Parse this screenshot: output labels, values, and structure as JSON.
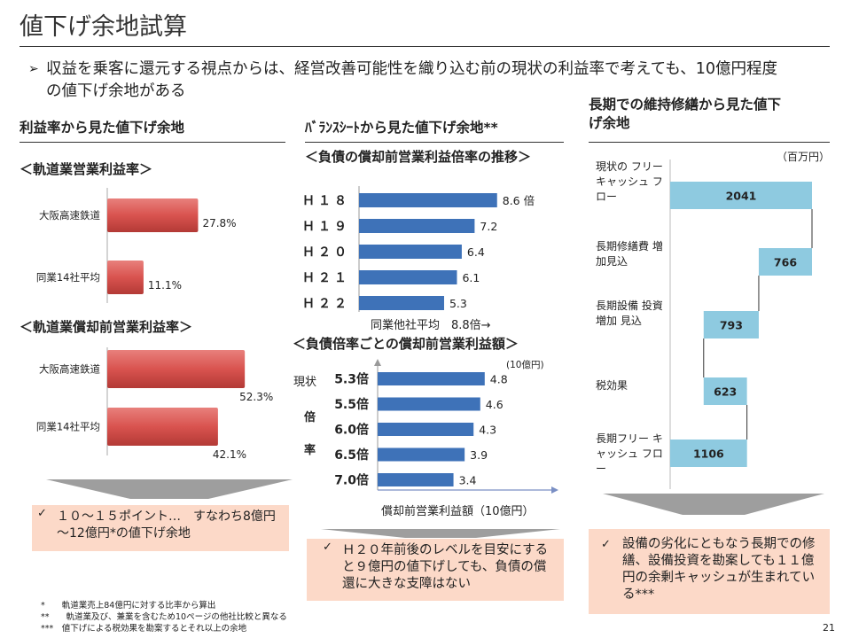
{
  "page": {
    "title": "値下げ余地試算",
    "lead": "収益を乗客に還元する視点からは、経営改善可能性を織り込む前の現状の利益率で考えても、10億円程度の値下げ余地がある",
    "page_number": "21"
  },
  "col1": {
    "heading": "利益率から見た値下げ余地",
    "chart1_title": "＜軌道業営業利益率＞",
    "chart2_title": "＜軌道業償却前営業利益率＞",
    "conclusion": "１０～１５ポイント…　すなわち8億円～12億円*の値下げ余地"
  },
  "col2": {
    "heading": "ﾊﾞﾗﾝｽｼｰﾄから見た値下げ余地**",
    "chart3_title": "＜負債の償却前営業利益倍率の推移＞",
    "chart3_note": "同業他社平均　8.8倍→",
    "chart4_title": "＜負債倍率ごとの償却前営業利益額＞",
    "chart4_unit": "(10億円)",
    "chart4_current": "現状",
    "chart4_ylabel_1": "倍",
    "chart4_ylabel_2": "率",
    "chart4_xlabel": "償却前営業利益額（10億円）",
    "conclusion": "Ｈ２０年前後のレベルを目安にすると９億円の値下げしても、負債の償還に大きな支障はない"
  },
  "col3": {
    "heading": "長期での維持修繕から見た値下げ余地",
    "unit": "（百万円）",
    "labels": [
      "現状の フリー キャッシュ フロー",
      "長期修繕費 増加見込",
      "長期設備 投資増加 見込",
      "税効果",
      "長期フリー キャッシュ フロー"
    ],
    "conclusion": "設備の劣化にともなう長期での修繕、設備投資を勘案しても１１億円の余剰キャッシュが生まれている***"
  },
  "footnotes": [
    "*　　軌道業売上84億円に対する比率から算出",
    "**　　軌道業及び、兼業を含むため10ページの他社比較と異なる",
    "***　値下げによる税効果を勘案するとそれ以上の余地"
  ],
  "colors": {
    "red_bar": "#d9534f",
    "blue_bar": "#3e72b8",
    "cyan_bar": "#8ecae0",
    "box": "#fcd9c8",
    "arrow": "#9e9e9e"
  },
  "chart_data": [
    {
      "type": "bar",
      "title": "＜軌道業営業利益率＞",
      "categories": [
        "大阪高速鉄道",
        "同業14社平均"
      ],
      "values": [
        27.8,
        11.1
      ],
      "data_labels": [
        "27.8%",
        "11.1%"
      ],
      "orientation": "horizontal",
      "xlim": [
        0,
        35
      ]
    },
    {
      "type": "bar",
      "title": "＜軌道業償却前営業利益率＞",
      "categories": [
        "大阪高速鉄道",
        "同業14社平均"
      ],
      "values": [
        52.3,
        42.1
      ],
      "data_labels": [
        "52.3%",
        "42.1%"
      ],
      "orientation": "horizontal",
      "xlim": [
        0,
        60
      ]
    },
    {
      "type": "bar",
      "title": "＜負債の償却前営業利益倍率の推移＞",
      "categories": [
        "Ｈ１８",
        "Ｈ１９",
        "Ｈ２０",
        "Ｈ２１",
        "Ｈ２２"
      ],
      "values": [
        8.6,
        7.2,
        6.4,
        6.1,
        5.3
      ],
      "data_labels": [
        "8.6 倍",
        "7.2",
        "6.4",
        "6.1",
        "5.3"
      ],
      "orientation": "horizontal",
      "xlim": [
        0,
        9
      ]
    },
    {
      "type": "bar",
      "title": "＜負債倍率ごとの償却前営業利益額＞",
      "categories": [
        "5.3倍",
        "5.5倍",
        "6.0倍",
        "6.5倍",
        "7.0倍"
      ],
      "values": [
        4.8,
        4.6,
        4.3,
        3.9,
        3.4
      ],
      "data_labels": [
        "4.8",
        "4.6",
        "4.3",
        "3.9",
        "3.4"
      ],
      "orientation": "horizontal",
      "xlabel": "償却前営業利益額（10億円）",
      "ylabel": "倍率",
      "xlim": [
        0,
        6
      ]
    },
    {
      "type": "bar",
      "subtype": "waterfall",
      "categories": [
        "現状のフリーキャッシュフロー",
        "長期修繕費増加見込",
        "長期設備投資増加見込",
        "税効果",
        "長期フリーキャッシュフロー"
      ],
      "values": [
        2041,
        -766,
        -793,
        623,
        1106
      ],
      "data_labels": [
        "2041",
        "766",
        "793",
        "623",
        "1106"
      ],
      "unit": "百万円",
      "xlim": [
        0,
        2200
      ]
    }
  ]
}
